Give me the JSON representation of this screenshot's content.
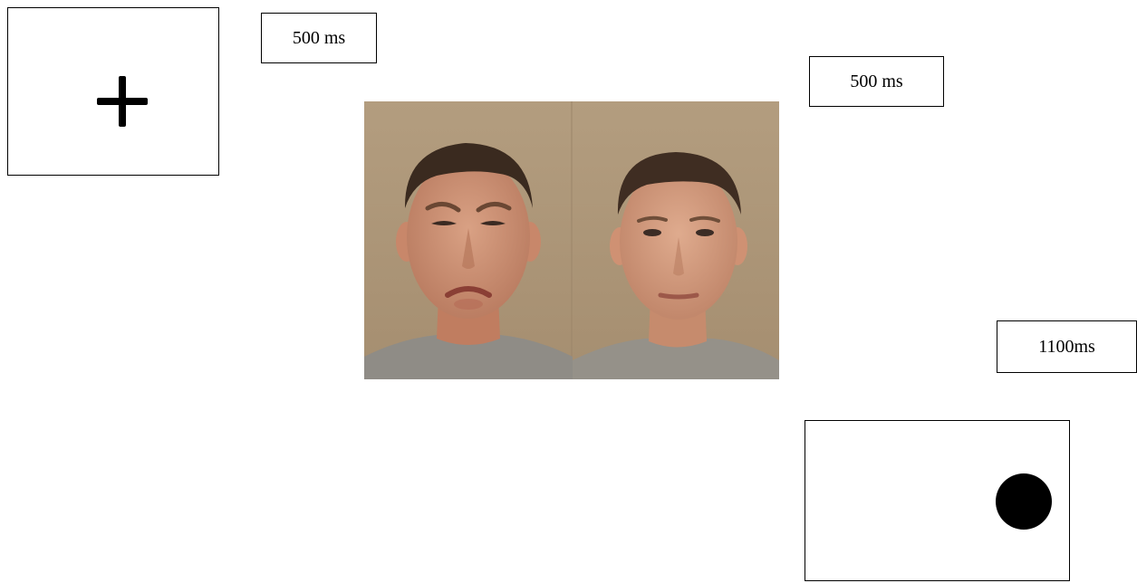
{
  "stimulus_sequence": {
    "fixation": {
      "symbol": "+"
    },
    "durations": {
      "fixation_duration": "500 ms",
      "faces_duration": "500 ms",
      "probe_duration": "1100ms"
    },
    "faces": {
      "left_expression": "disgust",
      "right_expression": "neutral"
    },
    "probe": {
      "shape": "filled-circle",
      "position": "right"
    }
  },
  "colors": {
    "background": "#ffffff",
    "stroke": "#000000",
    "photo_background": "#b09a7c"
  }
}
